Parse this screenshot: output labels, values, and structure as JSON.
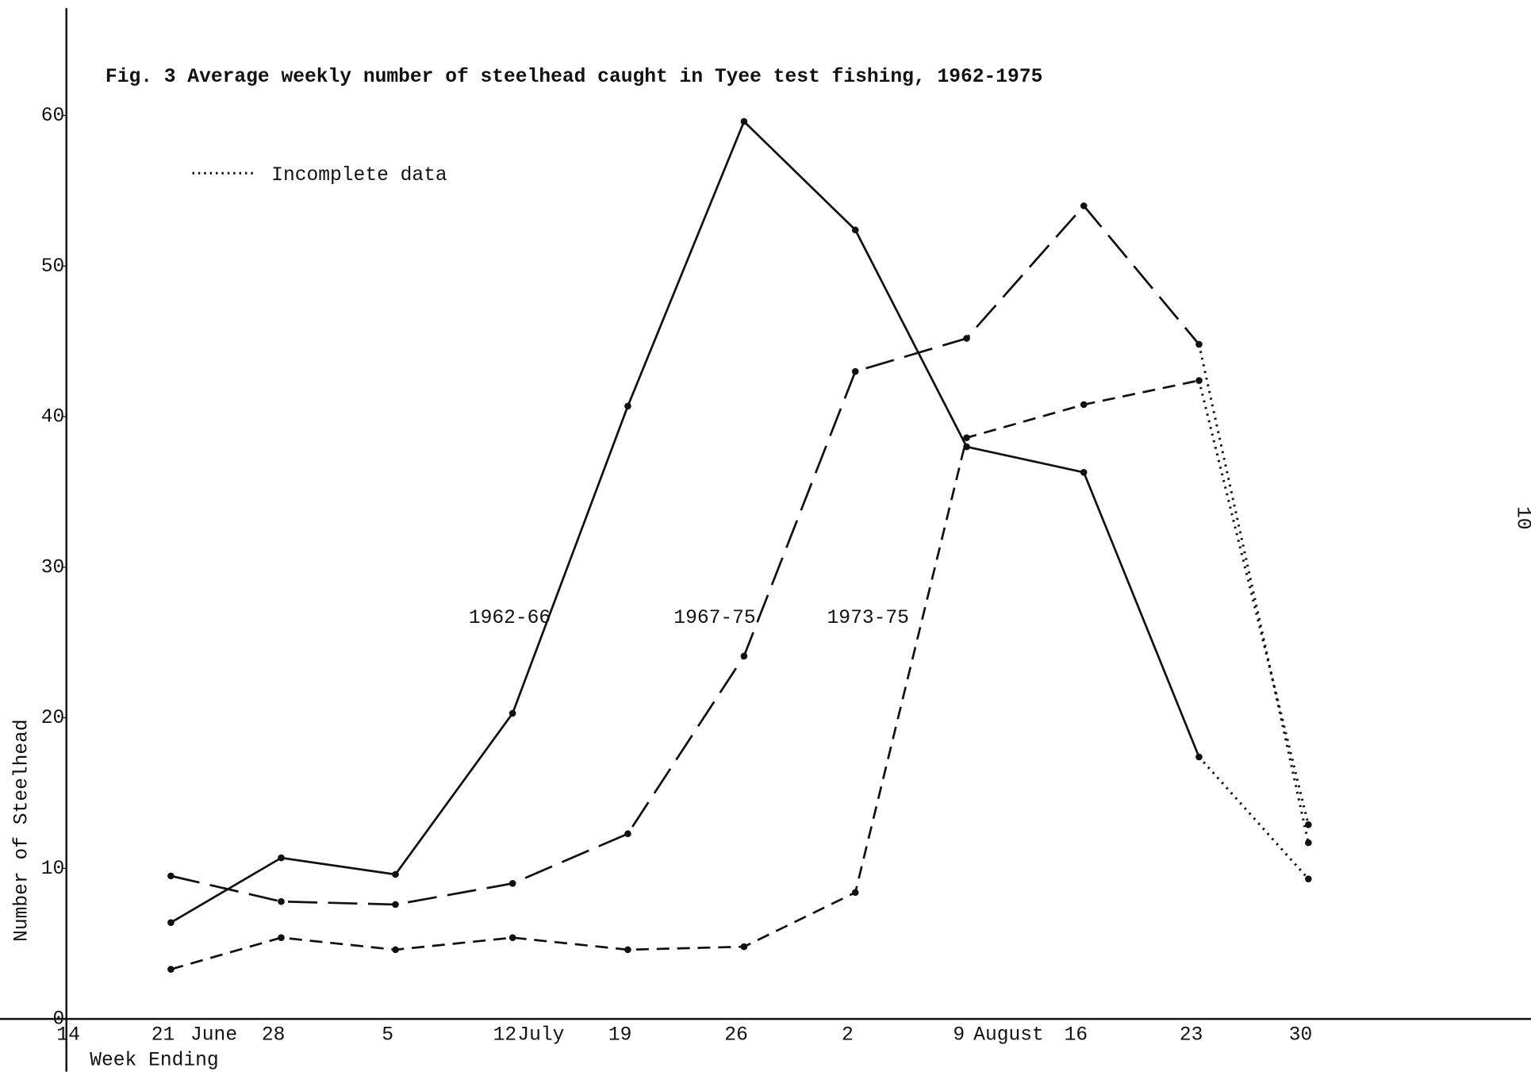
{
  "chart_data": {
    "type": "line",
    "title": "Fig. 3  Average weekly number of steelhead caught in Tyee test fishing, 1962-1975",
    "x_label": "Week Ending",
    "y_label": "Number of Steelhead",
    "legend_label": "Incomplete data",
    "page_mark": "10",
    "categories": [
      "14",
      "21",
      "28",
      "5",
      "12",
      "19",
      "26",
      "2",
      "9",
      "16",
      "23",
      "30"
    ],
    "month_labels": [
      "June",
      "July",
      "August"
    ],
    "ylim": [
      0,
      67
    ],
    "yticks": [
      0,
      10,
      20,
      30,
      40,
      50,
      60
    ],
    "dotted_last_segment": true,
    "series": [
      {
        "name": "1962-66",
        "color": "#111111",
        "dash": "solid",
        "values": [
          null,
          6.4,
          10.7,
          9.6,
          20.3,
          40.7,
          59.6,
          52.4,
          38.0,
          36.3,
          17.4,
          9.3
        ]
      },
      {
        "name": "1967-75",
        "color": "#111111",
        "dash": "long-dash",
        "values": [
          null,
          9.5,
          7.8,
          7.6,
          9.0,
          12.3,
          24.1,
          43.0,
          45.2,
          54.0,
          44.8,
          11.7
        ]
      },
      {
        "name": "1973-75",
        "color": "#111111",
        "dash": "short-dash",
        "values": [
          null,
          3.3,
          5.4,
          4.6,
          5.4,
          4.6,
          4.8,
          8.4,
          38.6,
          40.8,
          42.4,
          12.9
        ]
      }
    ]
  }
}
